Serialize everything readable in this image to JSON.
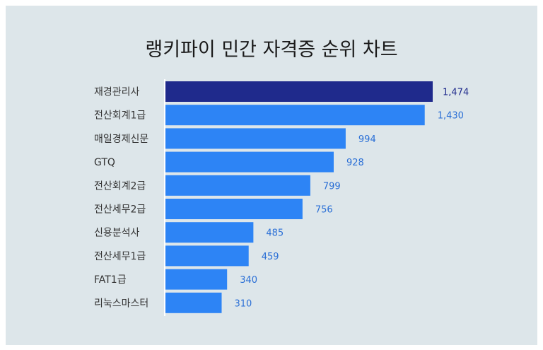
{
  "chart_data": {
    "type": "bar",
    "orientation": "horizontal",
    "title": "랭키파이 민간 자격증 순위 차트",
    "categories": [
      "재경관리사",
      "전산회계1급",
      "매일경제신문",
      "GTQ",
      "전산회계2급",
      "전산세무2급",
      "신용분석사",
      "전산세무1급",
      "FAT1급",
      "리눅스마스터"
    ],
    "values": [
      1474,
      1430,
      994,
      928,
      799,
      756,
      485,
      459,
      340,
      310
    ],
    "value_labels": [
      "1,474",
      "1,430",
      "994",
      "928",
      "799",
      "756",
      "485",
      "459",
      "340",
      "310"
    ],
    "xlabel": "",
    "ylabel": "",
    "xlim": [
      0,
      1474
    ],
    "grid": false,
    "colors": {
      "highlight": "#1f2a8c",
      "bar": "#2d84f5",
      "label_highlight": "#1f2a8c",
      "label": "#2a6fd6",
      "category_text": "#333333",
      "background": "#dde6ea",
      "axis": "#ffffff"
    }
  }
}
